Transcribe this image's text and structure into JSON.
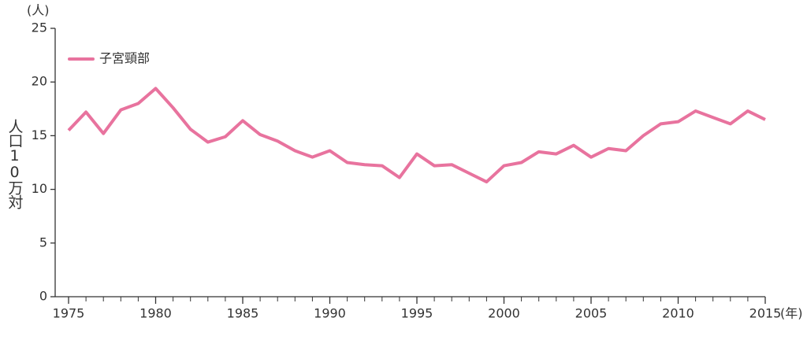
{
  "chart_data": {
    "type": "line",
    "y_unit": "(人)",
    "x_unit": "(年)",
    "ylabel": "人口10万対",
    "x": [
      1975,
      1976,
      1977,
      1978,
      1979,
      1980,
      1981,
      1982,
      1983,
      1984,
      1985,
      1986,
      1987,
      1988,
      1989,
      1990,
      1991,
      1992,
      1993,
      1994,
      1995,
      1996,
      1997,
      1998,
      1999,
      2000,
      2001,
      2002,
      2003,
      2004,
      2005,
      2006,
      2007,
      2008,
      2009,
      2010,
      2011,
      2012,
      2013,
      2014,
      2015
    ],
    "series": [
      {
        "name": "子宮頸部",
        "color": "#e8739e",
        "values": [
          15.5,
          17.2,
          15.2,
          17.4,
          18.0,
          19.4,
          17.6,
          15.6,
          14.4,
          14.9,
          16.4,
          15.1,
          14.5,
          13.6,
          13.0,
          13.6,
          12.5,
          12.3,
          12.2,
          11.1,
          13.3,
          12.2,
          12.3,
          11.5,
          10.7,
          12.2,
          12.5,
          13.5,
          13.3,
          14.1,
          13.0,
          13.8,
          13.6,
          15.0,
          16.1,
          16.3,
          17.3,
          16.7,
          16.1,
          17.3,
          16.5
        ]
      }
    ],
    "xlim": [
      1975,
      2015
    ],
    "xticks": [
      1975,
      1980,
      1985,
      1990,
      1995,
      2000,
      2005,
      2010,
      2015
    ],
    "ylim": [
      0,
      25
    ],
    "yticks": [
      0,
      5,
      10,
      15,
      20,
      25
    ],
    "legend": "upper-left"
  }
}
